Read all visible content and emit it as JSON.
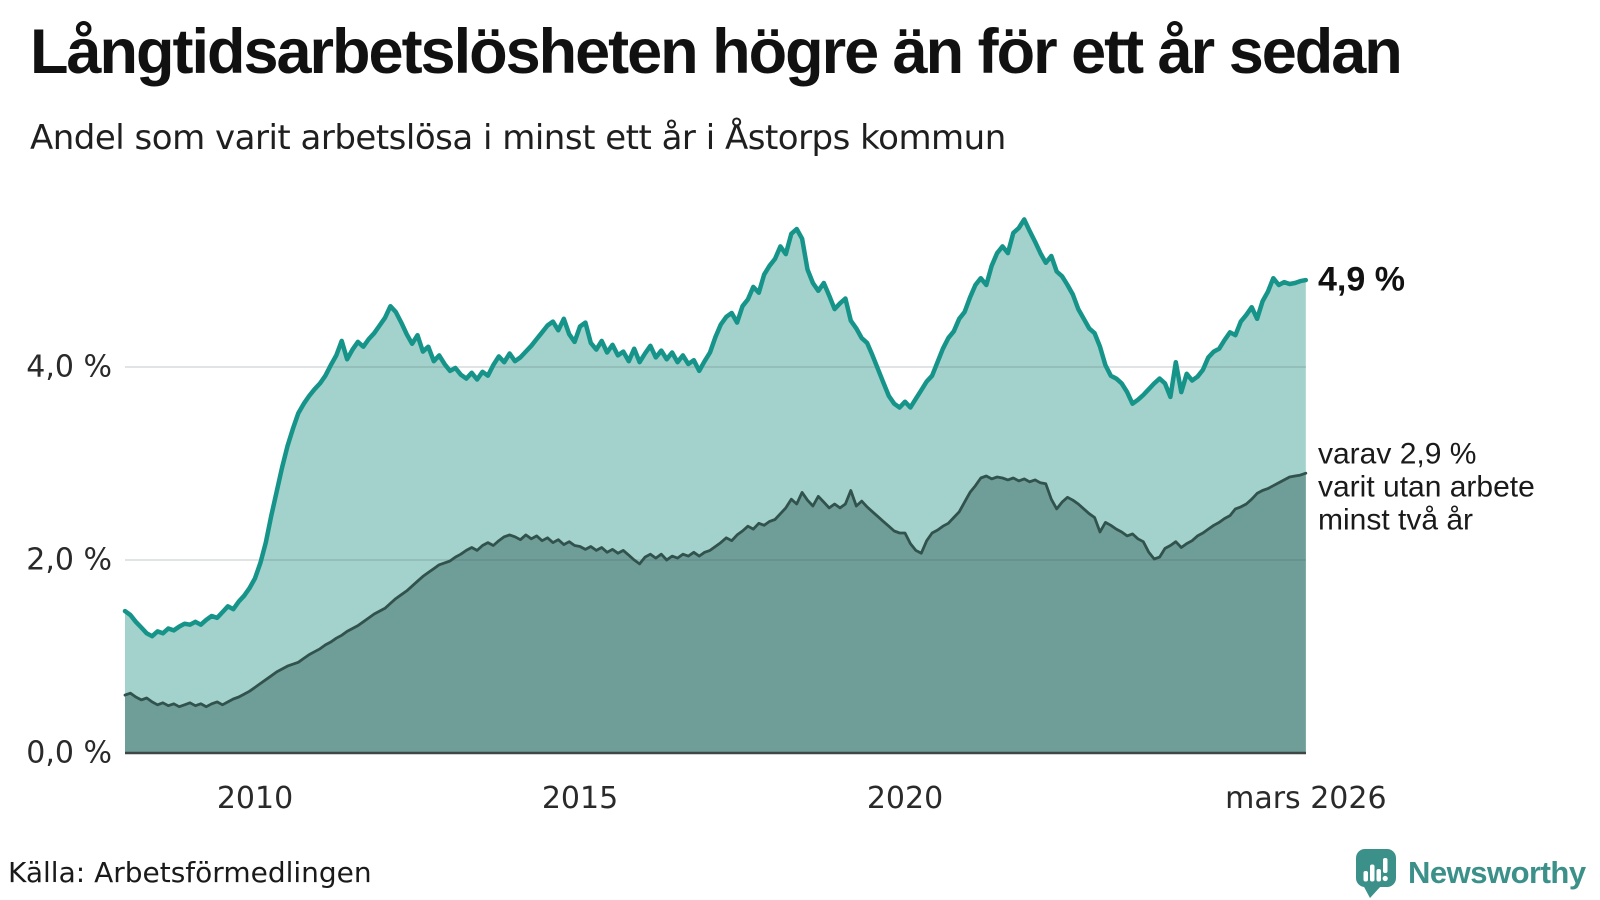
{
  "header": {
    "title": "Långtidsarbetslösheten högre än för ett år sedan",
    "subtitle": "Andel som varit arbetslösa i minst ett år i Åstorps kommun"
  },
  "chart_data": {
    "type": "area",
    "title": "Långtidsarbetslösheten högre än för ett år sedan",
    "subtitle": "Andel som varit arbetslösa i minst ett år i Åstorps kommun",
    "unit": "%",
    "x_monthly_start": "2008-01",
    "x_monthly_end": "2026-03",
    "xlim_years": [
      2008.0,
      2026.1667
    ],
    "ylim": [
      0,
      5.73
    ],
    "grid": "horizontal",
    "x_ticks": [
      {
        "year": 2010,
        "label": "2010"
      },
      {
        "year": 2015,
        "label": "2015"
      },
      {
        "year": 2020,
        "label": "2020"
      },
      {
        "year": 2026.1667,
        "label": "mars 2026"
      }
    ],
    "y_ticks": [
      {
        "value": 0,
        "label": "0,0 %"
      },
      {
        "value": 2,
        "label": "2,0 %"
      },
      {
        "value": 4,
        "label": "4,0 %"
      }
    ],
    "series": [
      {
        "name": "Andel arbetslösa minst ett år",
        "end_label": "4,9 %",
        "line_color": "#16948a",
        "fill_color": "#a2d2cb",
        "line_width": 4.5,
        "values": [
          1.47,
          1.43,
          1.36,
          1.3,
          1.24,
          1.21,
          1.26,
          1.24,
          1.29,
          1.27,
          1.31,
          1.34,
          1.33,
          1.36,
          1.33,
          1.38,
          1.42,
          1.4,
          1.46,
          1.52,
          1.49,
          1.57,
          1.63,
          1.71,
          1.81,
          1.97,
          2.18,
          2.46,
          2.71,
          2.96,
          3.18,
          3.36,
          3.52,
          3.62,
          3.7,
          3.77,
          3.83,
          3.91,
          4.02,
          4.12,
          4.27,
          4.08,
          4.18,
          4.26,
          4.21,
          4.29,
          4.35,
          4.43,
          4.51,
          4.63,
          4.57,
          4.46,
          4.34,
          4.24,
          4.33,
          4.16,
          4.21,
          4.06,
          4.12,
          4.03,
          3.96,
          3.99,
          3.92,
          3.88,
          3.94,
          3.87,
          3.95,
          3.91,
          4.02,
          4.11,
          4.05,
          4.14,
          4.06,
          4.1,
          4.16,
          4.22,
          4.29,
          4.36,
          4.43,
          4.47,
          4.38,
          4.5,
          4.34,
          4.26,
          4.42,
          4.46,
          4.25,
          4.18,
          4.27,
          4.15,
          4.23,
          4.12,
          4.16,
          4.06,
          4.19,
          4.05,
          4.14,
          4.22,
          4.1,
          4.17,
          4.08,
          4.15,
          4.05,
          4.12,
          4.03,
          4.07,
          3.96,
          4.06,
          4.15,
          4.31,
          4.44,
          4.52,
          4.56,
          4.46,
          4.63,
          4.7,
          4.83,
          4.77,
          4.96,
          5.05,
          5.12,
          5.25,
          5.17,
          5.38,
          5.43,
          5.33,
          5.01,
          4.87,
          4.79,
          4.87,
          4.74,
          4.6,
          4.66,
          4.71,
          4.48,
          4.4,
          4.3,
          4.25,
          4.12,
          3.98,
          3.84,
          3.7,
          3.62,
          3.58,
          3.64,
          3.58,
          3.67,
          3.76,
          3.85,
          3.91,
          4.05,
          4.19,
          4.3,
          4.37,
          4.5,
          4.57,
          4.72,
          4.85,
          4.92,
          4.85,
          5.05,
          5.18,
          5.25,
          5.18,
          5.39,
          5.44,
          5.53,
          5.41,
          5.3,
          5.18,
          5.08,
          5.15,
          4.99,
          4.94,
          4.85,
          4.75,
          4.6,
          4.5,
          4.4,
          4.35,
          4.21,
          4.02,
          3.91,
          3.88,
          3.83,
          3.74,
          3.62,
          3.66,
          3.71,
          3.77,
          3.83,
          3.88,
          3.83,
          3.69,
          4.05,
          3.74,
          3.93,
          3.86,
          3.9,
          3.97,
          4.1,
          4.16,
          4.19,
          4.28,
          4.36,
          4.33,
          4.47,
          4.54,
          4.62,
          4.5,
          4.68,
          4.78,
          4.92,
          4.85,
          4.88,
          4.86,
          4.87,
          4.89,
          4.9
        ]
      },
      {
        "name": "Varav utan arbete minst två år",
        "end_label": "varav 2,9 % varit utan arbete minst två år",
        "line_color": "#31524d",
        "fill_color": "#6f9e99",
        "line_width": 2.8,
        "values": [
          0.6,
          0.62,
          0.58,
          0.55,
          0.57,
          0.53,
          0.5,
          0.52,
          0.49,
          0.51,
          0.48,
          0.5,
          0.52,
          0.49,
          0.51,
          0.48,
          0.51,
          0.53,
          0.5,
          0.53,
          0.56,
          0.58,
          0.61,
          0.64,
          0.68,
          0.72,
          0.76,
          0.8,
          0.84,
          0.87,
          0.9,
          0.92,
          0.94,
          0.98,
          1.02,
          1.05,
          1.08,
          1.12,
          1.15,
          1.19,
          1.22,
          1.26,
          1.29,
          1.32,
          1.36,
          1.4,
          1.44,
          1.47,
          1.5,
          1.55,
          1.6,
          1.64,
          1.68,
          1.73,
          1.78,
          1.83,
          1.87,
          1.91,
          1.95,
          1.97,
          1.99,
          2.03,
          2.06,
          2.1,
          2.13,
          2.1,
          2.15,
          2.18,
          2.15,
          2.2,
          2.24,
          2.26,
          2.24,
          2.21,
          2.26,
          2.22,
          2.25,
          2.2,
          2.23,
          2.18,
          2.21,
          2.16,
          2.19,
          2.15,
          2.14,
          2.11,
          2.14,
          2.1,
          2.13,
          2.08,
          2.11,
          2.07,
          2.1,
          2.05,
          2.0,
          1.96,
          2.03,
          2.06,
          2.02,
          2.06,
          2.0,
          2.04,
          2.02,
          2.06,
          2.04,
          2.08,
          2.04,
          2.08,
          2.1,
          2.14,
          2.18,
          2.23,
          2.2,
          2.26,
          2.3,
          2.35,
          2.32,
          2.38,
          2.36,
          2.4,
          2.42,
          2.48,
          2.54,
          2.63,
          2.58,
          2.7,
          2.62,
          2.56,
          2.66,
          2.6,
          2.54,
          2.58,
          2.54,
          2.58,
          2.72,
          2.56,
          2.61,
          2.55,
          2.5,
          2.45,
          2.4,
          2.35,
          2.3,
          2.28,
          2.28,
          2.17,
          2.1,
          2.07,
          2.2,
          2.28,
          2.31,
          2.35,
          2.38,
          2.44,
          2.5,
          2.6,
          2.7,
          2.77,
          2.85,
          2.87,
          2.84,
          2.86,
          2.85,
          2.83,
          2.85,
          2.82,
          2.84,
          2.81,
          2.83,
          2.8,
          2.79,
          2.63,
          2.53,
          2.6,
          2.65,
          2.62,
          2.58,
          2.53,
          2.48,
          2.44,
          2.29,
          2.39,
          2.36,
          2.32,
          2.29,
          2.25,
          2.27,
          2.22,
          2.19,
          2.08,
          2.01,
          2.03,
          2.12,
          2.15,
          2.19,
          2.13,
          2.17,
          2.2,
          2.25,
          2.28,
          2.32,
          2.36,
          2.39,
          2.43,
          2.46,
          2.53,
          2.55,
          2.58,
          2.63,
          2.69,
          2.72,
          2.74,
          2.77,
          2.8,
          2.83,
          2.86,
          2.87,
          2.88,
          2.9
        ]
      }
    ]
  },
  "annotations": {
    "top_end_value": "4,9 %",
    "note_lines": [
      "varav 2,9 %",
      "varit utan arbete",
      "minst två år"
    ]
  },
  "footer": {
    "source": "Källa: Arbetsförmedlingen",
    "brand_name": "Newsworthy"
  },
  "colors": {
    "accent_teal": "#16948a",
    "fill_light": "#a2d2cb",
    "fill_dark": "#6f9e99",
    "line_dark": "#31524d",
    "gridline": "#e4e6e8",
    "baseline": "#3d4846",
    "brand": "#3b9089",
    "text": "#1a1a1a"
  }
}
